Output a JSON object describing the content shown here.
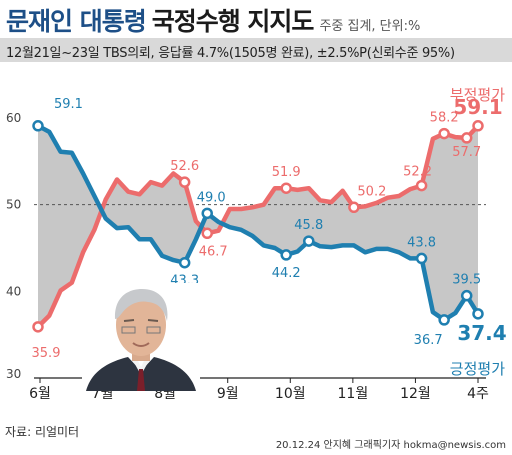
{
  "header": {
    "title_a": "문재인 대통령",
    "title_b": "국정수행 지지도",
    "title_note": "주중 집계, 단위:%",
    "subtitle": "12월21일~23일 TBS의뢰, 응답률 4.7%(1505명 완료), ±2.5%P(신뢰수준 95%)"
  },
  "footer": {
    "source": "자료: 리얼미터",
    "credit": "20.12.24 안지혜 그래픽기자  hokma@newsis.com"
  },
  "colors": {
    "positive": "#1f7fb0",
    "negative": "#ec6c6c",
    "fill": "#bdbdbd",
    "axis": "#222222"
  },
  "chart_data": {
    "type": "line",
    "ylim": [
      30,
      60
    ],
    "yticks": [
      30,
      40,
      50,
      60
    ],
    "grid": "dashed line at 50",
    "x_labels": [
      "6월",
      "7월",
      "8월",
      "9월",
      "10월",
      "11월",
      "12월",
      "4주"
    ],
    "series": [
      {
        "name": "긍정평가",
        "values": [
          59.1,
          58.4,
          56.1,
          56.0,
          53.6,
          51.0,
          48.4,
          47.3,
          47.4,
          46.0,
          46.0,
          44.1,
          43.6,
          43.3,
          46.0,
          49.0,
          48.0,
          47.4,
          47.1,
          46.4,
          45.3,
          45.0,
          44.2,
          44.6,
          45.8,
          45.2,
          45.1,
          45.3,
          45.3,
          44.5,
          44.9,
          44.9,
          44.5,
          43.8,
          43.8,
          37.6,
          36.7,
          37.5,
          39.5,
          37.4
        ]
      },
      {
        "name": "부정평가",
        "values": [
          35.9,
          37.2,
          40.1,
          41.0,
          44.5,
          47.1,
          50.6,
          52.9,
          51.5,
          51.2,
          52.6,
          52.2,
          53.6,
          52.6,
          48.1,
          46.7,
          47.0,
          49.5,
          49.5,
          49.7,
          50.0,
          51.9,
          51.9,
          51.7,
          51.9,
          50.5,
          50.3,
          51.6,
          49.7,
          49.8,
          50.2,
          50.8,
          51.0,
          51.8,
          52.2,
          57.6,
          58.2,
          57.8,
          57.7,
          59.1
        ]
      }
    ],
    "data_labels": {
      "positive": [
        "59.1",
        "43.3",
        "49.0",
        "44.2",
        "45.8",
        "43.8",
        "36.7",
        "39.5",
        "37.4"
      ],
      "negative": [
        "35.9",
        "52.6",
        "46.7",
        "51.9",
        "50.2",
        "52.2",
        "58.2",
        "57.7",
        "59.1"
      ]
    },
    "series_labels": {
      "positive": "긍정평가",
      "negative": "부정평가"
    }
  }
}
